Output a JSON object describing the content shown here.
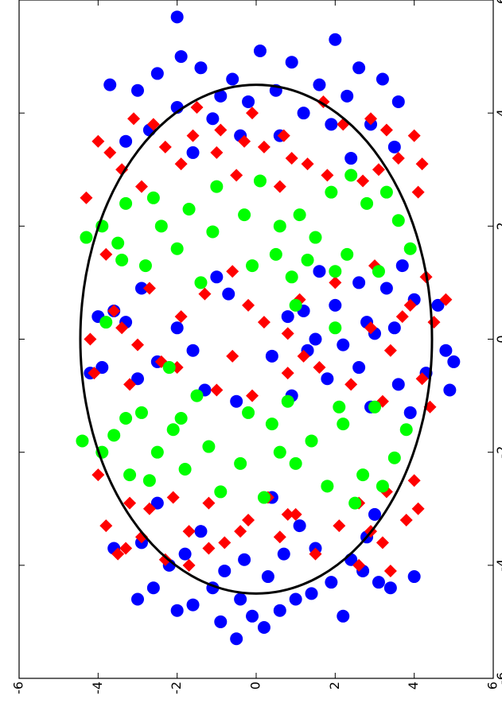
{
  "chart_data": {
    "type": "scatter",
    "orientation": "rotated-90",
    "title": "",
    "xlabel": "",
    "ylabel": "",
    "xlim": [
      -6,
      6
    ],
    "ylim": [
      -6,
      6
    ],
    "x_ticks": [
      -6,
      -4,
      -2,
      0,
      2,
      4,
      6
    ],
    "y_ticks": [
      -6,
      -4,
      -2,
      0,
      2,
      4,
      6
    ],
    "x_tick_labels": [
      "-6",
      "-4",
      "-2",
      "0",
      "2",
      "4",
      "6"
    ],
    "y_tick_labels": [
      "6",
      "4",
      "2",
      "0",
      "-2",
      "-4",
      "-6"
    ],
    "grid": false,
    "legend": "none",
    "boundary_ellipse": {
      "cx": 0,
      "cy": 0,
      "rx": 4.5,
      "ry": 4.45,
      "color": "#000000"
    },
    "series": [
      {
        "marker": "circle",
        "color": "#0000ff",
        "points": [
          [
            -4.6,
            0.4
          ],
          [
            -4.8,
            -0.6
          ],
          [
            -4.4,
            1.1
          ],
          [
            -4.5,
            -1.4
          ],
          [
            -4.9,
            0.1
          ],
          [
            -4.2,
            -0.3
          ],
          [
            -4.7,
            1.6
          ],
          [
            -4.3,
            -1.9
          ],
          [
            -4.1,
            0.8
          ],
          [
            -4.6,
            -1.0
          ],
          [
            -4.0,
            2.2
          ],
          [
            -3.9,
            -2.4
          ],
          [
            -4.4,
            2.6
          ],
          [
            -4.1,
            -2.7
          ],
          [
            -3.8,
            1.8
          ],
          [
            -3.7,
            -1.5
          ],
          [
            -5.1,
            -0.2
          ],
          [
            -5.0,
            0.9
          ],
          [
            -4.8,
            2.0
          ],
          [
            -4.3,
            -3.1
          ],
          [
            -3.6,
            2.9
          ],
          [
            -3.5,
            -2.8
          ],
          [
            -3.9,
            0.3
          ],
          [
            -3.8,
            -0.7
          ],
          [
            -4.6,
            3.0
          ],
          [
            -4.4,
            -3.4
          ],
          [
            -5.3,
            0.5
          ],
          [
            -4.9,
            -2.2
          ],
          [
            -3.4,
            1.4
          ],
          [
            -3.3,
            -1.1
          ],
          [
            -2.9,
            2.5
          ],
          [
            -3.1,
            -3.0
          ],
          [
            -4.2,
            -4.0
          ],
          [
            -3.7,
            3.6
          ],
          [
            -2.8,
            -0.4
          ],
          [
            4.6,
            0.6
          ],
          [
            4.4,
            -0.5
          ],
          [
            4.8,
            1.4
          ],
          [
            4.5,
            -1.6
          ],
          [
            4.2,
            0.2
          ],
          [
            4.3,
            -2.3
          ],
          [
            4.9,
            -0.9
          ],
          [
            4.1,
            2.0
          ],
          [
            4.7,
            2.5
          ],
          [
            4.0,
            -1.2
          ],
          [
            3.9,
            1.1
          ],
          [
            3.8,
            -2.9
          ],
          [
            4.4,
            3.0
          ],
          [
            4.6,
            -3.2
          ],
          [
            5.0,
            1.9
          ],
          [
            5.1,
            -0.1
          ],
          [
            4.2,
            -3.6
          ],
          [
            3.7,
            2.7
          ],
          [
            3.6,
            -0.6
          ],
          [
            4.8,
            -2.6
          ],
          [
            3.5,
            3.3
          ],
          [
            3.4,
            -3.5
          ],
          [
            4.3,
            0.9
          ],
          [
            5.3,
            -2.0
          ],
          [
            5.7,
            2.0
          ],
          [
            3.6,
            0.4
          ],
          [
            3.8,
            -1.9
          ],
          [
            3.3,
            1.6
          ],
          [
            3.2,
            -2.4
          ],
          [
            4.5,
            3.7
          ],
          [
            0.4,
            -0.8
          ],
          [
            -0.2,
            -1.3
          ],
          [
            0.6,
            -2.0
          ],
          [
            -0.5,
            -2.6
          ],
          [
            0.1,
            -3.0
          ],
          [
            -0.8,
            -3.6
          ],
          [
            0.3,
            3.3
          ],
          [
            -0.4,
            2.5
          ],
          [
            0.7,
            -4.0
          ],
          [
            -0.6,
            -4.3
          ],
          [
            0.2,
            2.0
          ],
          [
            -0.9,
            1.3
          ],
          [
            0.9,
            -3.3
          ],
          [
            -0.1,
            -2.2
          ],
          [
            -0.7,
            -1.8
          ],
          [
            0.5,
            -1.2
          ],
          [
            -0.3,
            -0.4
          ],
          [
            0.8,
            0.7
          ],
          [
            -1.0,
            -0.9
          ],
          [
            1.0,
            -2.6
          ],
          [
            -0.5,
            3.9
          ],
          [
            0.4,
            4.0
          ],
          [
            -0.2,
            -4.8
          ],
          [
            0.6,
            -4.6
          ],
          [
            -0.6,
            4.2
          ],
          [
            1.2,
            -1.6
          ],
          [
            -1.2,
            -2.9
          ],
          [
            0.0,
            -1.5
          ],
          [
            1.3,
            -3.7
          ],
          [
            -1.3,
            -3.9
          ],
          [
            0.9,
            2.9
          ],
          [
            -0.9,
            -4.9
          ],
          [
            -0.4,
            -5.0
          ],
          [
            0.2,
            -3.5
          ],
          [
            1.1,
            1.0
          ],
          [
            -1.1,
            0.5
          ],
          [
            0.3,
            -2.8
          ],
          [
            -0.2,
            1.6
          ],
          [
            0.5,
            3.6
          ],
          [
            -0.7,
            3.0
          ]
        ]
      },
      {
        "marker": "diamond",
        "color": "#ff0000",
        "points": [
          [
            -3.6,
            0.8
          ],
          [
            -3.5,
            -0.6
          ],
          [
            -3.9,
            2.3
          ],
          [
            -3.3,
            -2.1
          ],
          [
            -3.8,
            -1.5
          ],
          [
            -3.4,
            1.7
          ],
          [
            -3.2,
            0.2
          ],
          [
            -3.1,
            -1.0
          ],
          [
            -3.7,
            3.3
          ],
          [
            -3.0,
            2.7
          ],
          [
            -3.6,
            -3.2
          ],
          [
            -3.2,
            -3.8
          ],
          [
            -2.9,
            -2.6
          ],
          [
            -3.3,
            3.8
          ],
          [
            -4.0,
            -2.6
          ],
          [
            -3.5,
            2.9
          ],
          [
            -2.9,
            1.2
          ],
          [
            -2.8,
            -0.3
          ],
          [
            -4.1,
            -3.4
          ],
          [
            -3.8,
            3.5
          ],
          [
            -3.1,
            -0.8
          ],
          [
            -3.4,
            -2.9
          ],
          [
            -2.9,
            3.2
          ],
          [
            -2.7,
            -3.3
          ],
          [
            -3.7,
            1.2
          ],
          [
            -3.4,
            0.4
          ],
          [
            -2.8,
            2.1
          ],
          [
            -2.6,
            -1.8
          ],
          [
            -4.0,
            1.7
          ],
          [
            -3.0,
            -4.1
          ],
          [
            3.6,
            -0.7
          ],
          [
            3.3,
            1.0
          ],
          [
            3.8,
            -2.2
          ],
          [
            3.4,
            2.3
          ],
          [
            3.5,
            0.3
          ],
          [
            3.1,
            -1.3
          ],
          [
            3.9,
            3.1
          ],
          [
            3.7,
            -3.3
          ],
          [
            3.2,
            -3.6
          ],
          [
            3.0,
            3.4
          ],
          [
            4.1,
            1.5
          ],
          [
            3.6,
            -4.0
          ],
          [
            2.9,
            0.5
          ],
          [
            2.8,
            -2.7
          ],
          [
            3.4,
            -0.2
          ],
          [
            3.8,
            2.6
          ],
          [
            3.1,
            1.9
          ],
          [
            4.2,
            -1.7
          ],
          [
            3.0,
            -3.1
          ],
          [
            2.7,
            2.9
          ],
          [
            3.5,
            4.0
          ],
          [
            3.2,
            -0.9
          ],
          [
            3.9,
            -2.9
          ],
          [
            2.9,
            -1.8
          ],
          [
            3.6,
            1.6
          ],
          [
            3.1,
            -4.2
          ],
          [
            4.0,
            0.1
          ],
          [
            3.3,
            3.7
          ],
          [
            2.7,
            -0.6
          ],
          [
            3.7,
            0.9
          ],
          [
            0.1,
            -0.8
          ],
          [
            -0.3,
            0.6
          ],
          [
            0.4,
            1.9
          ],
          [
            -0.5,
            -1.6
          ],
          [
            0.2,
            -2.9
          ],
          [
            -0.1,
            3.0
          ],
          [
            0.6,
            -3.9
          ],
          [
            -0.6,
            4.1
          ],
          [
            0.3,
            -4.5
          ],
          [
            -0.4,
            2.4
          ],
          [
            0.8,
            1.3
          ],
          [
            -0.8,
            -2.4
          ],
          [
            0.5,
            3.6
          ],
          [
            -0.2,
            -3.4
          ],
          [
            0.7,
            -1.1
          ],
          [
            -0.9,
            1.0
          ],
          [
            0.0,
            4.2
          ],
          [
            -0.7,
            -4.2
          ],
          [
            1.0,
            -2.0
          ],
          [
            -1.0,
            0.1
          ],
          [
            0.3,
            -0.2
          ],
          [
            0.9,
            2.7
          ],
          [
            -0.3,
            -1.2
          ],
          [
            0.6,
            0.2
          ],
          [
            1.1,
            -4.3
          ],
          [
            -1.1,
            -3.2
          ],
          [
            0.2,
            3.4
          ],
          [
            -0.5,
            2.0
          ],
          [
            1.3,
            -3.0
          ],
          [
            -1.2,
            -4.4
          ],
          [
            0.4,
            -3.7
          ],
          [
            -0.8,
            3.2
          ],
          [
            0.7,
            -4.8
          ],
          [
            -0.6,
            -0.8
          ],
          [
            1.2,
            0.6
          ],
          [
            2.6,
            -4.1
          ],
          [
            -2.5,
            -4.0
          ],
          [
            2.5,
            4.3
          ],
          [
            -2.4,
            4.0
          ],
          [
            1.5,
            3.8
          ]
        ]
      },
      {
        "marker": "circle",
        "color": "#00ff00",
        "points": [
          [
            -1.2,
            -3.0
          ],
          [
            -1.5,
            -2.2
          ],
          [
            -1.8,
            -1.4
          ],
          [
            -2.0,
            -0.6
          ],
          [
            -2.2,
            0.4
          ],
          [
            -1.9,
            1.2
          ],
          [
            -1.6,
            2.1
          ],
          [
            -1.3,
            2.9
          ],
          [
            -2.4,
            -2.7
          ],
          [
            -2.6,
            -1.8
          ],
          [
            -2.3,
            1.8
          ],
          [
            -2.5,
            2.7
          ],
          [
            -1.7,
            3.6
          ],
          [
            -2.1,
            -3.5
          ],
          [
            -1.4,
            3.3
          ],
          [
            -2.8,
            -0.2
          ],
          [
            -2.7,
            0.9
          ],
          [
            -2.0,
            3.9
          ],
          [
            -1.1,
            -0.8
          ],
          [
            -1.0,
            1.5
          ],
          [
            -2.2,
            -1.0
          ],
          [
            -1.6,
            -3.8
          ],
          [
            -2.9,
            -2.5
          ],
          [
            -1.3,
            0.2
          ],
          [
            -2.4,
            3.2
          ],
          [
            -1.8,
            4.4
          ],
          [
            -2.0,
            2.5
          ],
          [
            -1.5,
            -0.4
          ],
          [
            -2.6,
            -3.2
          ],
          [
            -1.2,
            -2.1
          ],
          [
            1.2,
            -3.1
          ],
          [
            1.5,
            -2.3
          ],
          [
            1.8,
            -1.5
          ],
          [
            2.0,
            -0.6
          ],
          [
            2.2,
            0.3
          ],
          [
            1.9,
            1.1
          ],
          [
            1.6,
            2.0
          ],
          [
            1.3,
            2.8
          ],
          [
            2.4,
            -2.8
          ],
          [
            2.6,
            -1.9
          ],
          [
            2.3,
            1.7
          ],
          [
            2.5,
            2.6
          ],
          [
            1.7,
            3.5
          ],
          [
            2.1,
            -3.6
          ],
          [
            1.4,
            3.4
          ],
          [
            2.8,
            -0.1
          ],
          [
            2.7,
            1.0
          ],
          [
            2.0,
            3.9
          ],
          [
            1.1,
            -0.9
          ],
          [
            1.0,
            1.4
          ],
          [
            2.2,
            -1.1
          ],
          [
            1.6,
            -3.9
          ],
          [
            2.9,
            -2.4
          ],
          [
            1.3,
            0.1
          ],
          [
            2.4,
            3.3
          ],
          [
            1.8,
            4.3
          ],
          [
            2.0,
            2.4
          ],
          [
            1.5,
            -0.5
          ],
          [
            2.6,
            -3.3
          ],
          [
            1.2,
            -2.0
          ],
          [
            1.4,
            -1.3
          ],
          [
            -1.4,
            1.9
          ],
          [
            0.3,
            3.8
          ],
          [
            0.2,
            -2.0
          ],
          [
            -0.5,
            2.2
          ],
          [
            0.6,
            -1.0
          ]
        ]
      }
    ]
  }
}
